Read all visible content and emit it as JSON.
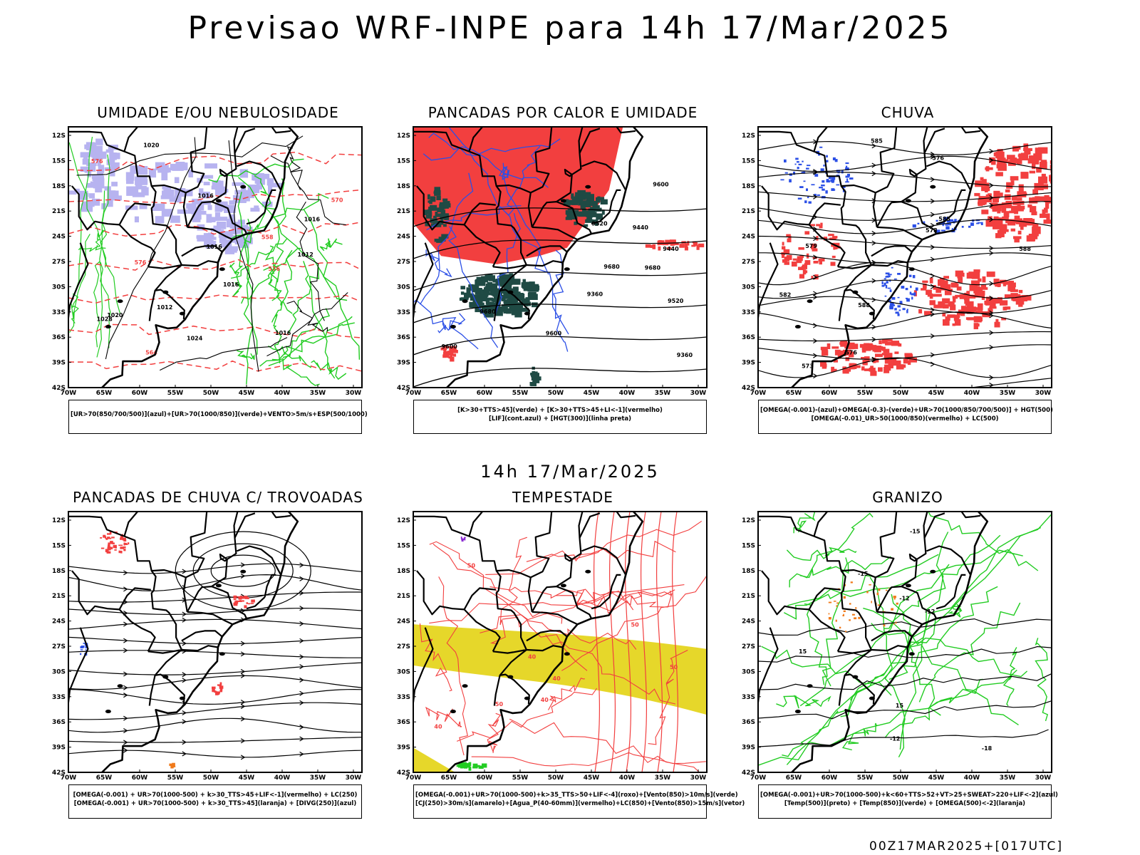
{
  "header": {
    "title": "Previsao WRF-INPE  para 14h 17/Mar/2025",
    "mid_title": "14h 17/Mar/2025",
    "footer_stamp": "00Z17MAR2025+[017UTC]"
  },
  "axes": {
    "lat_ticks": [
      "12S",
      "15S",
      "18S",
      "21S",
      "24S",
      "27S",
      "30S",
      "33S",
      "36S",
      "39S",
      "42S"
    ],
    "lon_ticks": [
      "70W",
      "65W",
      "60W",
      "55W",
      "50W",
      "45W",
      "40W",
      "35W",
      "30W"
    ]
  },
  "colors": {
    "purple": "#b7b3f0",
    "green": "#22cc22",
    "red": "#f23f3f",
    "blue": "#2b4fe6",
    "darkgreen": "#1f4a44",
    "yellow": "#e6d72a",
    "orange": "#f07a1a",
    "black": "#000000"
  },
  "panels": [
    {
      "id": "umidade",
      "title": "UMIDADE E/OU NEBULOSIDADE",
      "legend": [
        "[UR>70(850/700/500)](azul)+[UR>70(1000/850)](verde)+VENTO>5m/s+ESP(500/1000)"
      ],
      "labels": [
        "1012",
        "1012",
        "1016",
        "1016",
        "1016",
        "1016",
        "1016",
        "1020",
        "1020",
        "1024",
        "1028",
        "576",
        "576",
        "576",
        "570",
        "564",
        "558"
      ]
    },
    {
      "id": "pancadas-calor",
      "title": "PANCADAS POR CALOR E UMIDADE",
      "legend": [
        "[K>30+TTS>45](verde) + [K>30+TTS>45+LI<-1](vermelho)",
        "[LIF](cont.azul) + [HGT(300)](linha preta)"
      ],
      "labels": [
        "9680",
        "9680",
        "9680",
        "9600",
        "9600",
        "9600",
        "9520",
        "9520",
        "9440",
        "9440",
        "9360",
        "9360"
      ]
    },
    {
      "id": "chuva",
      "title": "CHUVA",
      "legend": [
        "[OMEGA(-0.001)-(azul)+OMEGA(-0.3)-(verde)+UR>70(1000/850/700/500)] + HGT(500)",
        "[OMEGA(-0.01)_UR>50(1000/850)(vermelho) + LC(500)"
      ],
      "labels": [
        "588",
        "588",
        "585",
        "585",
        "582",
        "579",
        "576",
        "576",
        "573",
        "573"
      ]
    },
    {
      "id": "pancadas-trovoadas",
      "title": "PANCADAS DE CHUVA C/ TROVOADAS",
      "legend": [
        "[OMEGA(-0.001) + UR>70(1000-500) + k>30_TTS>45+LIF<-1](vermelho) + LC(250)",
        "[OMEGA(-0.001) + UR>70(1000-500) + k>30_TTS>45](laranja) + [DIVG(250)](azul)"
      ],
      "labels": []
    },
    {
      "id": "tempestade",
      "title": "TEMPESTADE",
      "legend": [
        "[OMEGA(-0.001)+UR>70(1000-500)+k>35_TTS>50+LIF<-4](roxo)+[Vento(850)>10m/s](verde)",
        "[CJ(250)>30m/s](amarelo)+[Agua_P(40-60mm)](vermelho)+LC(850)+[Vento(850)>15m/s](vetor)"
      ],
      "labels": [
        "50",
        "50",
        "50",
        "50",
        "40",
        "40",
        "40",
        "40"
      ]
    },
    {
      "id": "granizo",
      "title": "GRANIZO",
      "legend": [
        "[OMEGA(-0.001)+UR>70(1000-500)+k<60+TTS>52+VT>25+SWEAT>220+LIF<-2](azul)",
        "[Temp(500)](preto) + [Temp(850)](verde) + [OMEGA(500)<-2](laranja)"
      ],
      "labels": [
        "-12",
        "-12",
        "-12",
        "-15",
        "-18",
        "-15",
        "15",
        "15"
      ]
    }
  ]
}
